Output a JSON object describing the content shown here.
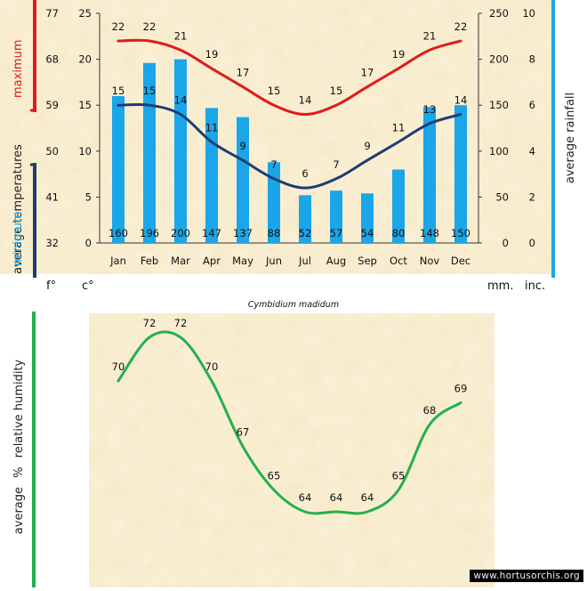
{
  "species": "Cymbidium madidum",
  "credit": "www.hortusorchis.org",
  "units": {
    "f": "f°",
    "c": "c°",
    "mm": "mm.",
    "inc": "inc."
  },
  "labels": {
    "temp_max": "maximum",
    "temp_mid": "average temperatures",
    "temp_min": "minimum",
    "rainfall": "average rainfall",
    "humidity_pre": "average",
    "humidity_pct": "%",
    "humidity_post": "relative humidity"
  },
  "colors": {
    "max_line": "#e01b1b",
    "min_line": "#1d3d73",
    "rain_bar": "#1aa6e8",
    "humidity_line": "#22b14c",
    "panel_bg": "#fbf1d8"
  },
  "chart_data": [
    {
      "type": "bar",
      "name": "climate",
      "categories": [
        "Jan",
        "Feb",
        "Mar",
        "Apr",
        "May",
        "Jun",
        "Jul",
        "Aug",
        "Sep",
        "Oct",
        "Nov",
        "Dec"
      ],
      "series": [
        {
          "values": [
            160,
            196,
            200,
            147,
            137,
            88,
            52,
            57,
            54,
            80,
            148,
            150
          ]
        },
        {
          "values": [
            22,
            22,
            21,
            19,
            17,
            15,
            14,
            15,
            17,
            19,
            21,
            22
          ]
        },
        {
          "values": [
            15,
            15,
            14,
            11,
            9,
            7,
            6,
            7,
            9,
            11,
            13,
            14
          ]
        }
      ],
      "axes": {
        "celsius": {
          "ticks": [
            0,
            5,
            10,
            15,
            20,
            25
          ],
          "range": [
            0,
            25
          ]
        },
        "fahrenheit": {
          "ticks": [
            32,
            41,
            50,
            59,
            68,
            77
          ]
        },
        "rain_mm": {
          "ticks": [
            0,
            50,
            100,
            150,
            200,
            250
          ],
          "range": [
            0,
            250
          ]
        },
        "rain_inches": {
          "ticks": [
            0,
            2,
            4,
            6,
            8,
            10
          ]
        }
      }
    },
    {
      "type": "line",
      "name": "humidity",
      "categories": [
        "Jan",
        "Feb",
        "Mar",
        "Apr",
        "May",
        "Jun",
        "Jul",
        "Aug",
        "Sep",
        "Oct",
        "Nov",
        "Dec"
      ],
      "values": [
        70,
        72,
        72,
        70,
        67,
        65,
        64,
        64,
        64,
        65,
        68,
        69
      ]
    }
  ]
}
